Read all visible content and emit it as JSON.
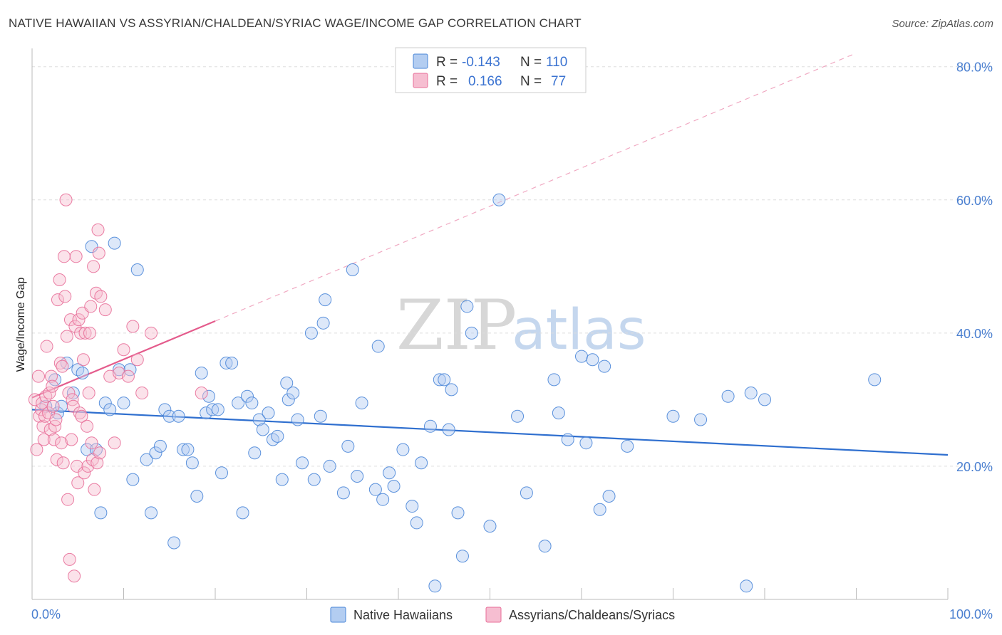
{
  "title": "NATIVE HAWAIIAN VS ASSYRIAN/CHALDEAN/SYRIAC WAGE/INCOME GAP CORRELATION CHART",
  "source": "Source: ZipAtlas.com",
  "watermark": {
    "zip": "ZIP",
    "atlas": "atlas"
  },
  "colors": {
    "blue": "#4a86d8",
    "blue_fill": "#b3cdf1",
    "pink": "#e86f99",
    "pink_fill": "#f6bed1",
    "grid": "#dddddd",
    "tick_label": "#4a7fd0"
  },
  "legend": {
    "rows": [
      {
        "r_label": "R = ",
        "r_value": "-0.143",
        "n_label": "N = ",
        "n_value": "110"
      },
      {
        "r_label": "R = ",
        "r_value": "0.166",
        "n_label": "N = ",
        "n_value": "77"
      }
    ]
  },
  "bottom_legend": [
    "Native Hawaiians",
    "Assyrians/Chaldeans/Syriacs"
  ],
  "chart_data": {
    "type": "scatter",
    "title": "NATIVE HAWAIIAN VS ASSYRIAN/CHALDEAN/SYRIAC WAGE/INCOME GAP CORRELATION CHART",
    "xlabel": "",
    "ylabel": "Wage/Income Gap",
    "xlim": [
      0,
      100
    ],
    "ylim": [
      0,
      82
    ],
    "x_tick_labels": [
      "0.0%",
      "100.0%"
    ],
    "y_ticks": [
      20,
      40,
      60,
      80
    ],
    "y_tick_labels": [
      "20.0%",
      "40.0%",
      "60.0%",
      "80.0%"
    ],
    "grid": true,
    "legend_position": "top-center",
    "series": [
      {
        "name": "Native Hawaiians",
        "color": "#4a86d8",
        "trend": {
          "x": [
            0,
            100
          ],
          "y": [
            28.5,
            21.7
          ]
        },
        "points": [
          [
            1.5,
            29
          ],
          [
            2.5,
            33
          ],
          [
            2.8,
            28
          ],
          [
            3.2,
            29
          ],
          [
            3.8,
            35.5
          ],
          [
            4.5,
            31
          ],
          [
            5,
            34.5
          ],
          [
            5.5,
            34
          ],
          [
            6,
            22.5
          ],
          [
            6.5,
            53
          ],
          [
            7,
            22.5
          ],
          [
            7.5,
            13
          ],
          [
            8,
            29.5
          ],
          [
            8.5,
            28.5
          ],
          [
            9,
            53.5
          ],
          [
            9.5,
            34.5
          ],
          [
            10,
            29.5
          ],
          [
            10.7,
            34.5
          ],
          [
            11,
            18
          ],
          [
            11.5,
            49.5
          ],
          [
            12.5,
            21
          ],
          [
            13,
            13
          ],
          [
            13.5,
            22
          ],
          [
            14,
            23
          ],
          [
            14.5,
            28.5
          ],
          [
            15,
            27.5
          ],
          [
            15.5,
            8.5
          ],
          [
            16,
            27.5
          ],
          [
            16.5,
            22.5
          ],
          [
            17,
            22.5
          ],
          [
            17.5,
            20.5
          ],
          [
            18,
            15.5
          ],
          [
            18.5,
            34
          ],
          [
            19,
            28
          ],
          [
            19.3,
            30.5
          ],
          [
            19.7,
            28.5
          ],
          [
            20.3,
            28.5
          ],
          [
            20.7,
            19
          ],
          [
            21.2,
            35.5
          ],
          [
            21.8,
            35.5
          ],
          [
            22.5,
            29.5
          ],
          [
            23,
            13
          ],
          [
            23.5,
            30.5
          ],
          [
            24,
            29.5
          ],
          [
            24.3,
            22
          ],
          [
            24.8,
            27
          ],
          [
            25.2,
            25.5
          ],
          [
            25.8,
            28
          ],
          [
            26.3,
            24
          ],
          [
            26.8,
            24.5
          ],
          [
            27.3,
            18
          ],
          [
            27.8,
            32.5
          ],
          [
            28,
            30
          ],
          [
            28.5,
            31
          ],
          [
            29,
            27
          ],
          [
            29.5,
            20.5
          ],
          [
            30.5,
            40
          ],
          [
            30.8,
            18
          ],
          [
            31.5,
            27.5
          ],
          [
            31.8,
            41.5
          ],
          [
            32,
            45
          ],
          [
            32.5,
            20
          ],
          [
            34,
            16
          ],
          [
            34.5,
            23
          ],
          [
            35,
            49.5
          ],
          [
            35.5,
            18.5
          ],
          [
            36,
            29.5
          ],
          [
            37.5,
            16.5
          ],
          [
            37.8,
            38
          ],
          [
            38.3,
            15
          ],
          [
            39,
            19
          ],
          [
            39.5,
            17
          ],
          [
            40.5,
            22.5
          ],
          [
            41.5,
            14
          ],
          [
            42,
            11.5
          ],
          [
            42.5,
            20.5
          ],
          [
            43.5,
            26
          ],
          [
            44,
            2
          ],
          [
            44.5,
            33
          ],
          [
            45,
            33
          ],
          [
            45.5,
            25.5
          ],
          [
            45.8,
            31.5
          ],
          [
            46.5,
            13
          ],
          [
            47,
            6.5
          ],
          [
            47.5,
            44
          ],
          [
            48,
            40
          ],
          [
            50,
            11
          ],
          [
            51,
            60
          ],
          [
            53,
            27.5
          ],
          [
            54,
            16
          ],
          [
            56,
            8
          ],
          [
            57,
            33
          ],
          [
            57.5,
            28
          ],
          [
            58.5,
            24
          ],
          [
            60,
            36.5
          ],
          [
            60.5,
            23.5
          ],
          [
            61.2,
            36
          ],
          [
            62,
            13.5
          ],
          [
            62.5,
            35
          ],
          [
            63,
            15.5
          ],
          [
            65,
            23
          ],
          [
            70,
            27.5
          ],
          [
            73,
            27
          ],
          [
            76,
            30.5
          ],
          [
            78,
            2
          ],
          [
            78.5,
            31
          ],
          [
            80,
            30
          ],
          [
            92,
            33
          ]
        ]
      },
      {
        "name": "Assyrians/Chaldeans/Syriacs",
        "color": "#e86f99",
        "trend": {
          "x": [
            0,
            20
          ],
          "y": [
            30.3,
            41.8
          ]
        },
        "points": [
          [
            0.3,
            30
          ],
          [
            0.5,
            22.5
          ],
          [
            0.7,
            33.5
          ],
          [
            0.8,
            27.5
          ],
          [
            1,
            28.5
          ],
          [
            1.1,
            29.5
          ],
          [
            1.2,
            26
          ],
          [
            1.3,
            24
          ],
          [
            1.4,
            27.5
          ],
          [
            1.5,
            30.5
          ],
          [
            1.6,
            38
          ],
          [
            1.8,
            28
          ],
          [
            1.9,
            31
          ],
          [
            2,
            25.5
          ],
          [
            2.1,
            33.5
          ],
          [
            2.2,
            32
          ],
          [
            2.3,
            29
          ],
          [
            2.4,
            24
          ],
          [
            2.5,
            26
          ],
          [
            2.6,
            27
          ],
          [
            2.7,
            21
          ],
          [
            2.8,
            45
          ],
          [
            3,
            48
          ],
          [
            3.1,
            35.5
          ],
          [
            3.2,
            23.5
          ],
          [
            3.3,
            35
          ],
          [
            3.4,
            20.5
          ],
          [
            3.5,
            51.5
          ],
          [
            3.6,
            45.5
          ],
          [
            3.7,
            60
          ],
          [
            3.8,
            39.5
          ],
          [
            3.9,
            15
          ],
          [
            4,
            31
          ],
          [
            4.1,
            6
          ],
          [
            4.2,
            42
          ],
          [
            4.3,
            24
          ],
          [
            4.4,
            30
          ],
          [
            4.5,
            29
          ],
          [
            4.6,
            3.5
          ],
          [
            4.7,
            41
          ],
          [
            4.8,
            51.5
          ],
          [
            4.9,
            20
          ],
          [
            5,
            17.5
          ],
          [
            5.1,
            42
          ],
          [
            5.2,
            28
          ],
          [
            5.3,
            40
          ],
          [
            5.4,
            27.5
          ],
          [
            5.5,
            43
          ],
          [
            5.6,
            36
          ],
          [
            5.7,
            19
          ],
          [
            5.8,
            40
          ],
          [
            6,
            26
          ],
          [
            6.1,
            20
          ],
          [
            6.2,
            31
          ],
          [
            6.3,
            40
          ],
          [
            6.4,
            44
          ],
          [
            6.5,
            23.5
          ],
          [
            6.6,
            21
          ],
          [
            6.7,
            50
          ],
          [
            6.8,
            16.5
          ],
          [
            7,
            46
          ],
          [
            7.1,
            20.5
          ],
          [
            7.2,
            55.5
          ],
          [
            7.3,
            52
          ],
          [
            7.4,
            22
          ],
          [
            7.5,
            45.5
          ],
          [
            8,
            43.5
          ],
          [
            8.5,
            33.5
          ],
          [
            9,
            23.5
          ],
          [
            9.5,
            34
          ],
          [
            10,
            37.5
          ],
          [
            10.5,
            33.5
          ],
          [
            11,
            41
          ],
          [
            11.5,
            36
          ],
          [
            12,
            31
          ],
          [
            13,
            40
          ],
          [
            18.5,
            31
          ]
        ]
      }
    ]
  }
}
